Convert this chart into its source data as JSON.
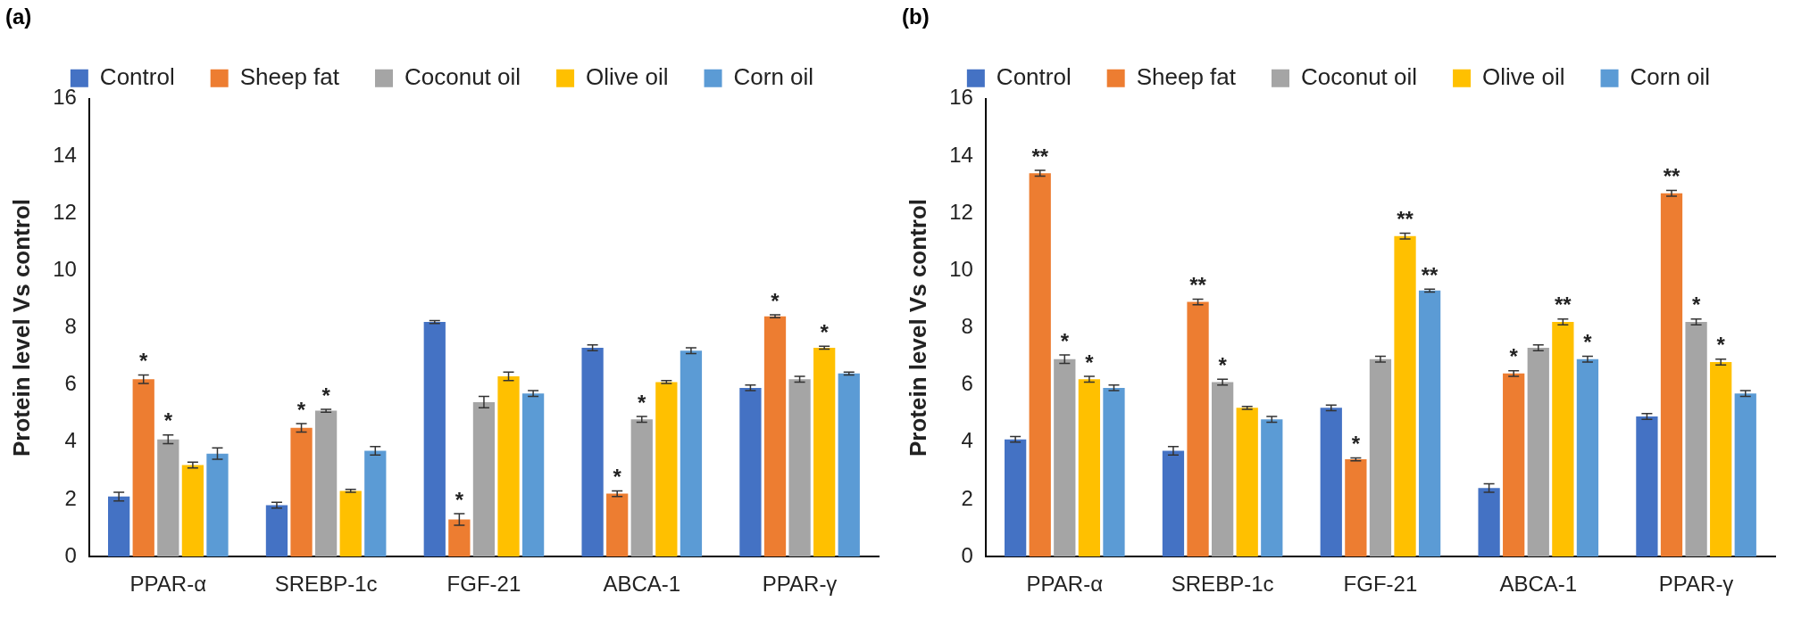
{
  "chart_data": [
    {
      "type": "bar",
      "title": "(a)",
      "ylabel": "Protein level Vs control",
      "categories": [
        "PPAR-α",
        "SREBP-1c",
        "FGF-21",
        "ABCA-1",
        "PPAR-γ"
      ],
      "ylim": [
        0,
        16
      ],
      "yticks": [
        0,
        2,
        4,
        6,
        8,
        10,
        12,
        14,
        16
      ],
      "grid": false,
      "legend": "top",
      "series": [
        {
          "name": "Control",
          "color": "#4472c4",
          "values": [
            2.1,
            1.8,
            8.2,
            7.3,
            5.9
          ],
          "errors": [
            0.15,
            0.1,
            0.05,
            0.1,
            0.1
          ]
        },
        {
          "name": "Sheep fat",
          "color": "#ed7d31",
          "values": [
            6.2,
            4.5,
            1.3,
            2.2,
            8.4
          ],
          "errors": [
            0.15,
            0.15,
            0.2,
            0.1,
            0.05
          ],
          "value_labels": [
            "*",
            "*",
            "*",
            "*",
            "*"
          ]
        },
        {
          "name": "Coconut oil",
          "color": "#a5a5a5",
          "values": [
            4.1,
            5.1,
            5.4,
            4.8,
            6.2
          ],
          "errors": [
            0.15,
            0.05,
            0.2,
            0.1,
            0.1
          ],
          "value_labels": [
            "*",
            "*",
            null,
            "*",
            null
          ]
        },
        {
          "name": "Olive oil",
          "color": "#ffc000",
          "values": [
            3.2,
            2.3,
            6.3,
            6.1,
            7.3
          ],
          "errors": [
            0.1,
            0.05,
            0.15,
            0.05,
            0.05
          ],
          "value_labels": [
            null,
            null,
            null,
            null,
            "*"
          ]
        },
        {
          "name": "Corn oil",
          "color": "#5b9bd5",
          "values": [
            3.6,
            3.7,
            5.7,
            7.2,
            6.4
          ],
          "errors": [
            0.2,
            0.15,
            0.1,
            0.1,
            0.05
          ]
        }
      ]
    },
    {
      "type": "bar",
      "title": "(b)",
      "ylabel": "Protein level Vs control",
      "categories": [
        "PPAR-α",
        "SREBP-1c",
        "FGF-21",
        "ABCA-1",
        "PPAR-γ"
      ],
      "ylim": [
        0,
        16
      ],
      "yticks": [
        0,
        2,
        4,
        6,
        8,
        10,
        12,
        14,
        16
      ],
      "grid": false,
      "legend": "top",
      "series": [
        {
          "name": "Control",
          "color": "#4472c4",
          "values": [
            4.1,
            3.7,
            5.2,
            2.4,
            4.9
          ],
          "errors": [
            0.1,
            0.15,
            0.1,
            0.15,
            0.1
          ]
        },
        {
          "name": "Sheep fat",
          "color": "#ed7d31",
          "values": [
            13.4,
            8.9,
            3.4,
            6.4,
            12.7
          ],
          "errors": [
            0.1,
            0.1,
            0.05,
            0.1,
            0.1
          ],
          "value_labels": [
            "**",
            "**",
            "*",
            "*",
            "**"
          ]
        },
        {
          "name": "Coconut oil",
          "color": "#a5a5a5",
          "values": [
            6.9,
            6.1,
            6.9,
            7.3,
            8.2
          ],
          "errors": [
            0.15,
            0.1,
            0.1,
            0.1,
            0.1
          ],
          "value_labels": [
            "*",
            "*",
            null,
            null,
            "*"
          ]
        },
        {
          "name": "Olive oil",
          "color": "#ffc000",
          "values": [
            6.2,
            5.2,
            11.2,
            8.2,
            6.8
          ],
          "errors": [
            0.1,
            0.05,
            0.1,
            0.1,
            0.1
          ],
          "value_labels": [
            "*",
            null,
            "**",
            "**",
            "*"
          ]
        },
        {
          "name": "Corn oil",
          "color": "#5b9bd5",
          "values": [
            5.9,
            4.8,
            9.3,
            6.9,
            5.7
          ],
          "errors": [
            0.1,
            0.1,
            0.05,
            0.1,
            0.1
          ],
          "value_labels": [
            null,
            null,
            "**",
            "*",
            null
          ]
        }
      ]
    }
  ]
}
